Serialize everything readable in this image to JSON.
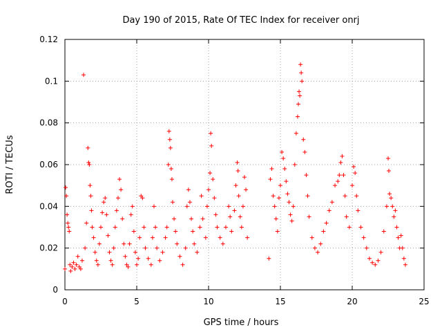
{
  "chart_data": {
    "type": "scatter",
    "title": "Day 190 of 2015, Rate Of TEC Index for receiver onrj",
    "xlabel": "GPS time / hours",
    "ylabel": "ROTI / TECUs",
    "xlim": [
      0,
      25
    ],
    "ylim": [
      0,
      0.12
    ],
    "xticks": [
      "0",
      "5",
      "10",
      "15",
      "20",
      "25"
    ],
    "yticks": [
      "0",
      "0.02",
      "0.04",
      "0.06",
      "0.08",
      "0.1",
      "0.12"
    ],
    "grid": true,
    "marker": "+",
    "series": [
      {
        "color": "#ff0000",
        "points": [
          [
            0.0,
            0.01
          ],
          [
            0.05,
            0.049
          ],
          [
            0.1,
            0.045
          ],
          [
            0.15,
            0.036
          ],
          [
            0.2,
            0.032
          ],
          [
            0.25,
            0.03
          ],
          [
            0.3,
            0.028
          ],
          [
            0.35,
            0.012
          ],
          [
            0.4,
            0.009
          ],
          [
            0.5,
            0.011
          ],
          [
            0.6,
            0.013
          ],
          [
            0.7,
            0.01
          ],
          [
            0.8,
            0.012
          ],
          [
            0.9,
            0.016
          ],
          [
            1.0,
            0.011
          ],
          [
            1.1,
            0.01
          ],
          [
            1.2,
            0.014
          ],
          [
            1.3,
            0.103
          ],
          [
            1.4,
            0.02
          ],
          [
            1.5,
            0.032
          ],
          [
            1.6,
            0.068
          ],
          [
            1.65,
            0.061
          ],
          [
            1.7,
            0.06
          ],
          [
            1.75,
            0.05
          ],
          [
            1.8,
            0.045
          ],
          [
            1.85,
            0.038
          ],
          [
            1.9,
            0.03
          ],
          [
            2.0,
            0.025
          ],
          [
            2.1,
            0.018
          ],
          [
            2.2,
            0.014
          ],
          [
            2.3,
            0.012
          ],
          [
            2.4,
            0.022
          ],
          [
            2.5,
            0.03
          ],
          [
            2.6,
            0.037
          ],
          [
            2.7,
            0.042
          ],
          [
            2.8,
            0.044
          ],
          [
            2.9,
            0.036
          ],
          [
            3.0,
            0.026
          ],
          [
            3.1,
            0.018
          ],
          [
            3.2,
            0.014
          ],
          [
            3.3,
            0.012
          ],
          [
            3.4,
            0.02
          ],
          [
            3.5,
            0.03
          ],
          [
            3.6,
            0.038
          ],
          [
            3.7,
            0.044
          ],
          [
            3.8,
            0.053
          ],
          [
            3.9,
            0.048
          ],
          [
            4.0,
            0.034
          ],
          [
            4.1,
            0.022
          ],
          [
            4.2,
            0.016
          ],
          [
            4.3,
            0.012
          ],
          [
            4.4,
            0.011
          ],
          [
            4.5,
            0.022
          ],
          [
            4.6,
            0.036
          ],
          [
            4.7,
            0.04
          ],
          [
            4.8,
            0.028
          ],
          [
            4.9,
            0.018
          ],
          [
            5.0,
            0.012
          ],
          [
            5.1,
            0.015
          ],
          [
            5.2,
            0.025
          ],
          [
            5.3,
            0.045
          ],
          [
            5.4,
            0.044
          ],
          [
            5.5,
            0.03
          ],
          [
            5.6,
            0.02
          ],
          [
            5.8,
            0.015
          ],
          [
            6.0,
            0.012
          ],
          [
            6.1,
            0.025
          ],
          [
            6.2,
            0.04
          ],
          [
            6.3,
            0.03
          ],
          [
            6.4,
            0.02
          ],
          [
            6.6,
            0.014
          ],
          [
            6.8,
            0.018
          ],
          [
            7.0,
            0.025
          ],
          [
            7.1,
            0.03
          ],
          [
            7.2,
            0.06
          ],
          [
            7.25,
            0.076
          ],
          [
            7.3,
            0.072
          ],
          [
            7.35,
            0.068
          ],
          [
            7.4,
            0.058
          ],
          [
            7.45,
            0.053
          ],
          [
            7.5,
            0.042
          ],
          [
            7.6,
            0.034
          ],
          [
            7.7,
            0.028
          ],
          [
            7.8,
            0.022
          ],
          [
            8.0,
            0.016
          ],
          [
            8.2,
            0.012
          ],
          [
            8.4,
            0.02
          ],
          [
            8.5,
            0.04
          ],
          [
            8.6,
            0.048
          ],
          [
            8.7,
            0.042
          ],
          [
            8.8,
            0.034
          ],
          [
            8.9,
            0.028
          ],
          [
            9.0,
            0.022
          ],
          [
            9.2,
            0.018
          ],
          [
            9.4,
            0.03
          ],
          [
            9.5,
            0.045
          ],
          [
            9.6,
            0.034
          ],
          [
            9.8,
            0.025
          ],
          [
            9.9,
            0.04
          ],
          [
            10.0,
            0.048
          ],
          [
            10.1,
            0.056
          ],
          [
            10.15,
            0.075
          ],
          [
            10.2,
            0.069
          ],
          [
            10.3,
            0.053
          ],
          [
            10.4,
            0.044
          ],
          [
            10.5,
            0.036
          ],
          [
            10.6,
            0.03
          ],
          [
            10.8,
            0.025
          ],
          [
            11.0,
            0.022
          ],
          [
            11.2,
            0.03
          ],
          [
            11.4,
            0.04
          ],
          [
            11.5,
            0.035
          ],
          [
            11.6,
            0.028
          ],
          [
            11.8,
            0.038
          ],
          [
            11.9,
            0.05
          ],
          [
            12.0,
            0.061
          ],
          [
            12.05,
            0.057
          ],
          [
            12.1,
            0.045
          ],
          [
            12.2,
            0.035
          ],
          [
            12.3,
            0.03
          ],
          [
            12.4,
            0.04
          ],
          [
            12.5,
            0.054
          ],
          [
            12.6,
            0.048
          ],
          [
            12.7,
            0.025
          ],
          [
            14.2,
            0.015
          ],
          [
            14.3,
            0.053
          ],
          [
            14.4,
            0.058
          ],
          [
            14.5,
            0.045
          ],
          [
            14.6,
            0.04
          ],
          [
            14.7,
            0.034
          ],
          [
            14.8,
            0.028
          ],
          [
            14.9,
            0.044
          ],
          [
            15.0,
            0.05
          ],
          [
            15.1,
            0.066
          ],
          [
            15.2,
            0.063
          ],
          [
            15.3,
            0.058
          ],
          [
            15.4,
            0.052
          ],
          [
            15.5,
            0.046
          ],
          [
            15.6,
            0.042
          ],
          [
            15.7,
            0.036
          ],
          [
            15.8,
            0.033
          ],
          [
            15.9,
            0.04
          ],
          [
            16.0,
            0.06
          ],
          [
            16.1,
            0.075
          ],
          [
            16.2,
            0.083
          ],
          [
            16.25,
            0.089
          ],
          [
            16.3,
            0.095
          ],
          [
            16.35,
            0.093
          ],
          [
            16.4,
            0.108
          ],
          [
            16.45,
            0.104
          ],
          [
            16.5,
            0.1
          ],
          [
            16.6,
            0.072
          ],
          [
            16.7,
            0.066
          ],
          [
            16.8,
            0.055
          ],
          [
            16.9,
            0.045
          ],
          [
            17.0,
            0.035
          ],
          [
            17.2,
            0.025
          ],
          [
            17.4,
            0.02
          ],
          [
            17.6,
            0.018
          ],
          [
            17.8,
            0.022
          ],
          [
            18.0,
            0.028
          ],
          [
            18.2,
            0.032
          ],
          [
            18.4,
            0.038
          ],
          [
            18.6,
            0.042
          ],
          [
            18.8,
            0.05
          ],
          [
            19.0,
            0.052
          ],
          [
            19.1,
            0.055
          ],
          [
            19.2,
            0.061
          ],
          [
            19.3,
            0.064
          ],
          [
            19.4,
            0.055
          ],
          [
            19.5,
            0.045
          ],
          [
            19.6,
            0.035
          ],
          [
            19.8,
            0.03
          ],
          [
            20.0,
            0.05
          ],
          [
            20.1,
            0.059
          ],
          [
            20.2,
            0.056
          ],
          [
            20.3,
            0.045
          ],
          [
            20.4,
            0.038
          ],
          [
            20.6,
            0.03
          ],
          [
            20.8,
            0.025
          ],
          [
            21.0,
            0.02
          ],
          [
            21.2,
            0.015
          ],
          [
            21.4,
            0.013
          ],
          [
            21.6,
            0.012
          ],
          [
            21.8,
            0.014
          ],
          [
            22.0,
            0.018
          ],
          [
            22.2,
            0.028
          ],
          [
            22.4,
            0.04
          ],
          [
            22.5,
            0.063
          ],
          [
            22.55,
            0.057
          ],
          [
            22.6,
            0.046
          ],
          [
            22.7,
            0.044
          ],
          [
            22.8,
            0.04
          ],
          [
            22.9,
            0.035
          ],
          [
            23.0,
            0.038
          ],
          [
            23.1,
            0.03
          ],
          [
            23.2,
            0.025
          ],
          [
            23.3,
            0.02
          ],
          [
            23.4,
            0.026
          ],
          [
            23.5,
            0.02
          ],
          [
            23.6,
            0.015
          ],
          [
            23.7,
            0.012
          ]
        ]
      }
    ]
  }
}
